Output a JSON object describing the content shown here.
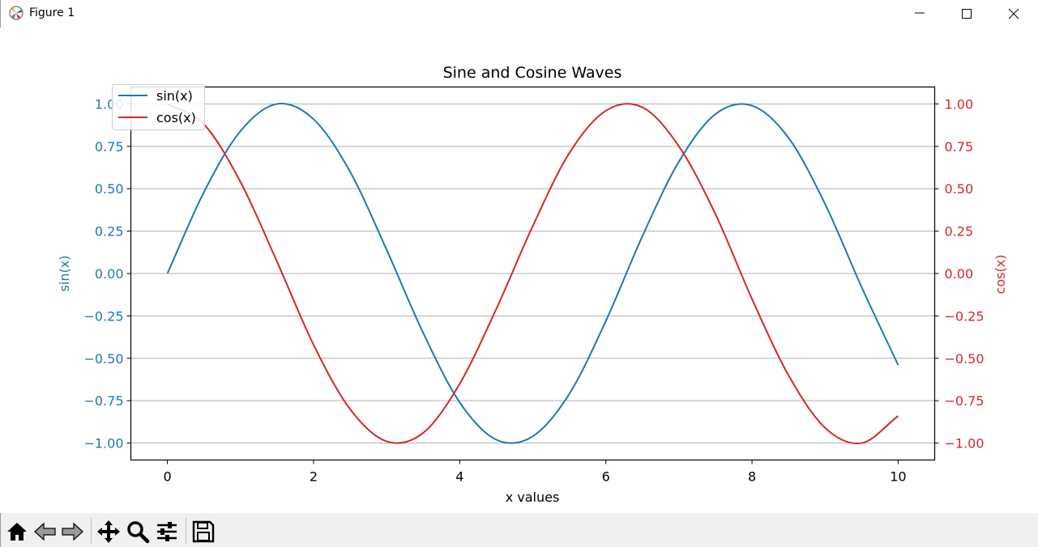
{
  "window": {
    "title": "Figure 1"
  },
  "toolbar": {
    "buttons": [
      "home-icon",
      "back-icon",
      "forward-icon",
      "pan-icon",
      "zoom-icon",
      "configure-subplots-icon",
      "save-icon"
    ]
  },
  "colors": {
    "sin": "#1f77b4",
    "cos": "#d62728",
    "axis": "#000000",
    "grid": "#b0b0b0"
  },
  "chart_data": {
    "type": "line",
    "title": "Sine and Cosine Waves",
    "xlabel": "x values",
    "ylabel_left": "sin(x)",
    "ylabel_right": "cos(x)",
    "xlim": [
      -0.5,
      10.5
    ],
    "ylim_left": [
      -1.1,
      1.1
    ],
    "ylim_right": [
      -1.1,
      1.1
    ],
    "x_ticks": [
      "0",
      "2",
      "4",
      "6",
      "8",
      "10"
    ],
    "y_ticks": [
      "1.00",
      "0.75",
      "0.50",
      "0.25",
      "0.00",
      "−0.25",
      "−0.50",
      "−0.75",
      "−1.00"
    ],
    "grid": "horizontal",
    "legend_position": "upper-left",
    "series": [
      {
        "name": "sin(x)",
        "axis": "left",
        "color": "#1f77b4",
        "x": [
          0,
          0.5,
          1,
          1.5,
          2,
          2.5,
          3,
          3.5,
          4,
          4.5,
          5,
          5.5,
          6,
          6.5,
          7,
          7.5,
          8,
          8.5,
          9,
          9.5,
          10
        ],
        "y": [
          0,
          0.48,
          0.84,
          1.0,
          0.91,
          0.6,
          0.14,
          -0.35,
          -0.76,
          -0.98,
          -0.96,
          -0.71,
          -0.28,
          0.22,
          0.66,
          0.94,
          0.99,
          0.8,
          0.41,
          -0.08,
          -0.54
        ]
      },
      {
        "name": "cos(x)",
        "axis": "right",
        "color": "#d62728",
        "x": [
          0,
          0.5,
          1,
          1.5,
          2,
          2.5,
          3,
          3.5,
          4,
          4.5,
          5,
          5.5,
          6,
          6.5,
          7,
          7.5,
          8,
          8.5,
          9,
          9.5,
          10
        ],
        "y": [
          1.0,
          0.88,
          0.54,
          0.07,
          -0.42,
          -0.8,
          -0.99,
          -0.94,
          -0.65,
          -0.21,
          0.28,
          0.71,
          0.96,
          0.98,
          0.75,
          0.35,
          -0.15,
          -0.6,
          -0.91,
          -1.0,
          -0.84
        ]
      }
    ]
  }
}
